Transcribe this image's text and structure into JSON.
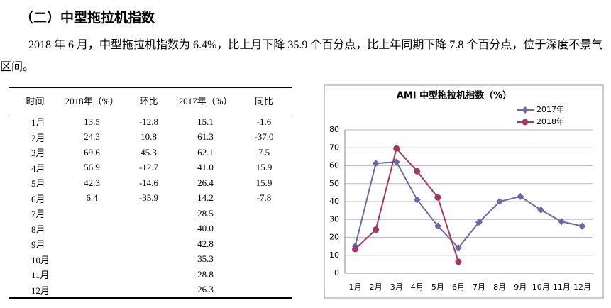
{
  "heading": "（二）中型拖拉机指数",
  "paragraph": "2018 年 6 月，中型拖拉机指数为 6.4%，比上月下降 35.9 个百分点，比上年同期下降 7.8 个百分点，位于深度不景气区间。",
  "table": {
    "headers": [
      "时间",
      "2018年（%）",
      "环比",
      "2017年（%）",
      "同比"
    ],
    "rows": [
      [
        "1月",
        "13.5",
        "-12.8",
        "15.1",
        "-1.6"
      ],
      [
        "2月",
        "24.3",
        "10.8",
        "61.3",
        "-37.0"
      ],
      [
        "3月",
        "69.6",
        "45.3",
        "62.1",
        "7.5"
      ],
      [
        "4月",
        "56.9",
        "-12.7",
        "41.0",
        "15.9"
      ],
      [
        "5月",
        "42.3",
        "-14.6",
        "26.4",
        "15.9"
      ],
      [
        "6月",
        "6.4",
        "-35.9",
        "14.2",
        "-7.8"
      ],
      [
        "7月",
        null,
        null,
        "28.5",
        null
      ],
      [
        "8月",
        null,
        null,
        "40.0",
        null
      ],
      [
        "9月",
        null,
        null,
        "42.8",
        null
      ],
      [
        "10月",
        null,
        null,
        "35.3",
        null
      ],
      [
        "11月",
        null,
        null,
        "28.8",
        null
      ],
      [
        "12月",
        null,
        null,
        "26.3",
        null
      ]
    ]
  },
  "chart_data": {
    "type": "line",
    "title": "AMI 中型拖拉机指数（%）",
    "categories": [
      "1月",
      "2月",
      "3月",
      "4月",
      "5月",
      "6月",
      "7月",
      "8月",
      "9月",
      "10月",
      "11月",
      "12月"
    ],
    "series": [
      {
        "name": "2017年",
        "color": "#6b6ba8",
        "marker": "diamond",
        "values": [
          15.1,
          61.3,
          62.1,
          41.0,
          26.4,
          14.2,
          28.5,
          40.0,
          42.8,
          35.3,
          28.8,
          26.3
        ]
      },
      {
        "name": "2018年",
        "color": "#a33860",
        "marker": "circle",
        "values": [
          13.5,
          24.3,
          69.6,
          56.9,
          42.3,
          6.4,
          null,
          null,
          null,
          null,
          null,
          null
        ]
      }
    ],
    "ylim": [
      0,
      80
    ],
    "yticks": [
      0,
      10,
      20,
      30,
      40,
      50,
      60,
      70,
      80
    ],
    "grid": true,
    "legend": "top-right"
  }
}
